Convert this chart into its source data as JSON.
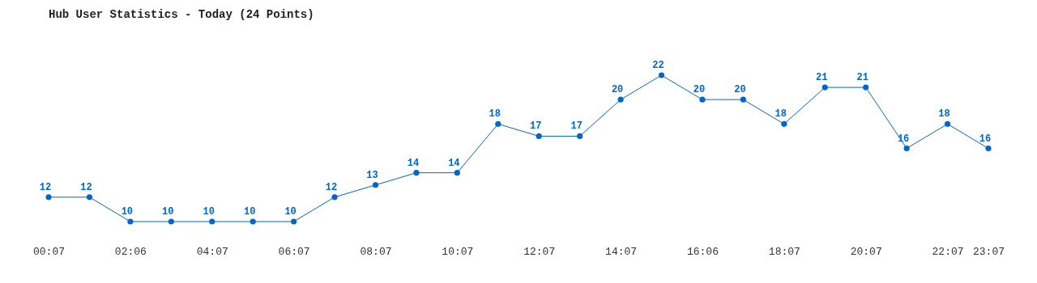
{
  "chart_data": {
    "type": "line",
    "title": "Hub User Statistics - Today (24 Points)",
    "categories": [
      "00:07",
      null,
      "02:06",
      null,
      "04:07",
      null,
      "06:07",
      null,
      "08:07",
      null,
      "10:07",
      null,
      "12:07",
      null,
      "14:07",
      null,
      "16:06",
      null,
      "18:07",
      null,
      "20:07",
      null,
      "22:07",
      "23:07"
    ],
    "series": [
      {
        "color": "#0066cc",
        "values": [
          12,
          12,
          10,
          10,
          10,
          10,
          10,
          12,
          13,
          14,
          14,
          18,
          17,
          17,
          20,
          22,
          20,
          20,
          18,
          21,
          21,
          16,
          18,
          16
        ]
      }
    ],
    "data_labels": true,
    "marker": "circle",
    "line_style": "solid"
  }
}
